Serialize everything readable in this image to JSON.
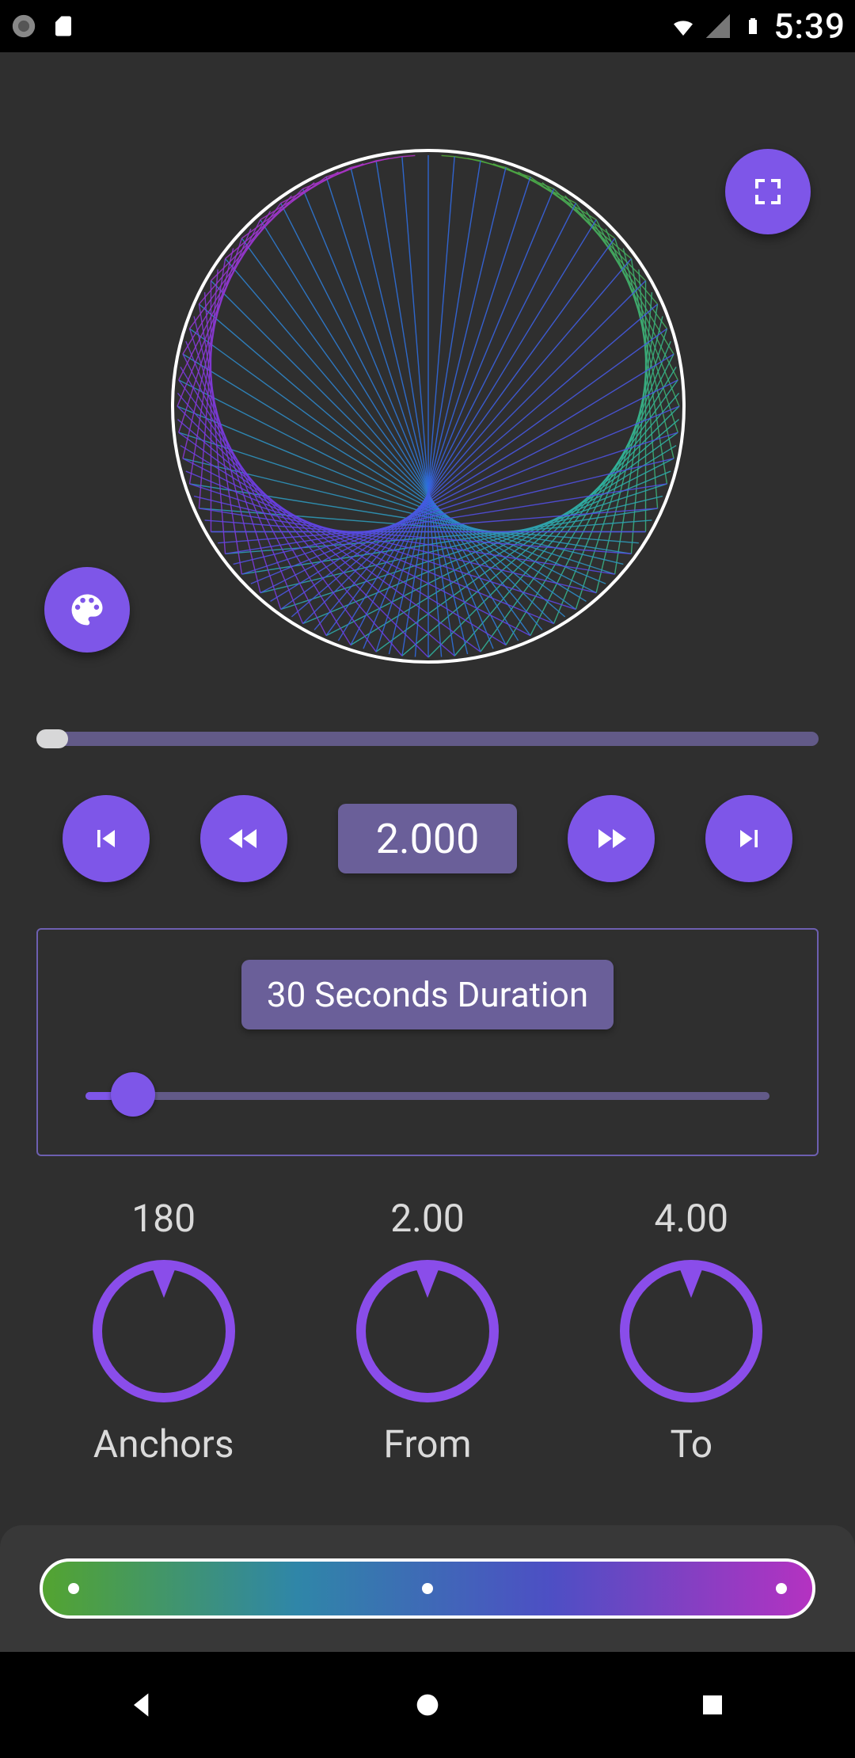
{
  "status": {
    "time": "5:39",
    "icons": {
      "camera": true,
      "sd": true,
      "wifi": true,
      "signal": true,
      "battery_full": true
    }
  },
  "colors": {
    "bg": "#2f2f2f",
    "accent": "#7e56e8",
    "accent_soft": "#6a5f99",
    "chip": "#6a5f99",
    "chip_border": "#6d5fb0",
    "track": "#625a88",
    "knob_ring": "#8a4dea",
    "spectrum_start": "#53a430",
    "spectrum_mid1": "#2f86a8",
    "spectrum_mid2": "#4d4fc4",
    "spectrum_end": "#b432c1"
  },
  "preview": {
    "lines": 120,
    "color_stops": [
      "#53a430",
      "#2fb4a0",
      "#2f6be0",
      "#6a3de0",
      "#b432c1"
    ]
  },
  "playback": {
    "progress_pct": 1,
    "value": "2.000"
  },
  "duration": {
    "label": "30 Seconds Duration",
    "slider_pct": 7
  },
  "knobs": [
    {
      "value": "180",
      "label": "Anchors"
    },
    {
      "value": "2.00",
      "label": "From"
    },
    {
      "value": "4.00",
      "label": "To"
    }
  ],
  "spectrum": {
    "dot_positions_pct": [
      4,
      50,
      96
    ]
  },
  "icons": {
    "fullscreen": "fullscreen-icon",
    "palette": "palette-icon",
    "skip_prev": "skip-previous-icon",
    "rewind": "rewind-icon",
    "ffwd": "fast-forward-icon",
    "skip_next": "skip-next-icon"
  }
}
